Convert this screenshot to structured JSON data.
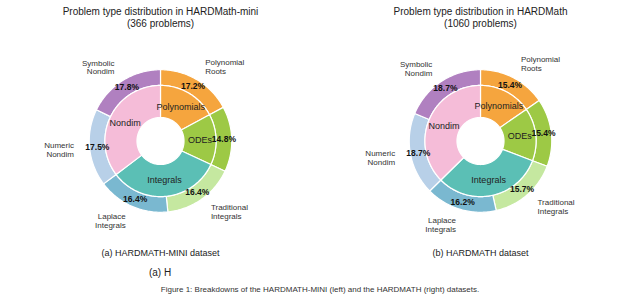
{
  "chart_data": [
    {
      "type": "pie",
      "title": "Problem type distribution in HARDMath-mini\n(366 problems)",
      "caption": "(a) HARDMATH-MINI dataset",
      "rings": [
        {
          "categories": [
            "Polynomial\nRoots",
            null,
            "Traditional\nIntegrals",
            "Laplace\nIntegrals",
            "Numeric\nNondim",
            "Symbolic\nNondim"
          ],
          "values": [
            17.2,
            14.8,
            16.4,
            16.4,
            17.5,
            17.8
          ],
          "value_labels": [
            "17.2%",
            "14.8%",
            "16.4%",
            "16.4%",
            "17.5%",
            "17.8%"
          ],
          "colors": [
            "#f5a53e",
            "#9dc945",
            "#c5e8a0",
            "#7ab8d0",
            "#b8d0e8",
            "#b080c0"
          ],
          "data_labels": true
        },
        {
          "categories": [
            "Polynomials",
            "ODEs",
            "Integrals",
            "Nondim"
          ],
          "values": [
            17.2,
            14.8,
            32.8,
            35.3
          ],
          "colors": [
            "#f5a53e",
            "#9dc945",
            "#5bbfb5",
            "#f5bcd8"
          ]
        }
      ]
    },
    {
      "type": "pie",
      "title": "Problem type distribution in HARDMath\n(1060 problems)",
      "caption": "(b) HARDMATH dataset",
      "rings": [
        {
          "categories": [
            "Polynomial\nRoots",
            null,
            "Traditional\nIntegrals",
            "Laplace\nIntegrals",
            "Numeric\nNondim",
            "Symbolic\nNondim"
          ],
          "values": [
            15.4,
            15.4,
            15.7,
            16.2,
            18.7,
            18.7
          ],
          "value_labels": [
            "15.4%",
            "15.4%",
            "15.7%",
            "16.2%",
            "18.7%",
            "18.7%"
          ],
          "colors": [
            "#f5a53e",
            "#9dc945",
            "#c5e8a0",
            "#7ab8d0",
            "#b8d0e8",
            "#b080c0"
          ],
          "data_labels": true
        },
        {
          "categories": [
            "Polynomials",
            "ODEs",
            "Integrals",
            "Nondim"
          ],
          "values": [
            15.4,
            15.4,
            31.9,
            37.4
          ],
          "colors": [
            "#f5a53e",
            "#9dc945",
            "#5bbfb5",
            "#f5bcd8"
          ]
        }
      ]
    }
  ],
  "annotation": "(a) H",
  "caption": "Figure 1: Breakdowns of the HARDMATH-MINI (left) and the HARDMATH (right) datasets."
}
